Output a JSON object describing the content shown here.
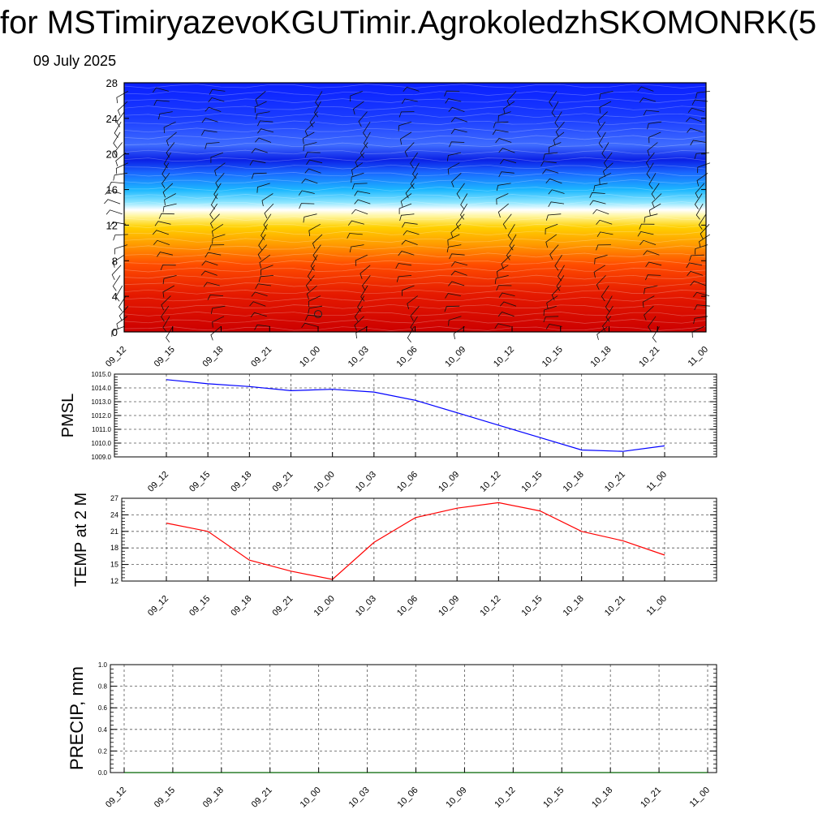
{
  "title": "for MSTimiryazevoKGUTimir.AgrokoledzhSKOMONRK(5",
  "subtitle": "09 July 2025",
  "colors": {
    "pmsl_line": "#0000ff",
    "temp_line": "#ff0000",
    "precip_line": "#006400",
    "grid": "#555555"
  },
  "chart_data": [
    {
      "type": "heatmap",
      "id": "cross-section",
      "x": [
        "09_12",
        "09_15",
        "09_18",
        "09_21",
        "10_00",
        "10_03",
        "10_06",
        "10_09",
        "10_12",
        "10_15",
        "10_18",
        "10_21",
        "11_00"
      ],
      "y_ticks": [
        0,
        4,
        8,
        12,
        16,
        20,
        24,
        28
      ],
      "ylim": [
        0,
        28
      ],
      "color_scale": "red-to-blue",
      "color_transition_y": [
        12.5,
        13.5
      ],
      "barbs": "wind barbs at every column and level"
    },
    {
      "type": "line",
      "id": "pmsl",
      "ylabel": "PMSL",
      "categories": [
        "09_12",
        "09_15",
        "09_18",
        "09_21",
        "10_00",
        "10_03",
        "10_06",
        "10_09",
        "10_12",
        "10_15",
        "10_18",
        "10_21",
        "11_00"
      ],
      "values": [
        1014.6,
        1014.3,
        1014.1,
        1013.8,
        1013.9,
        1013.7,
        1013.1,
        1012.2,
        1011.3,
        1010.4,
        1009.5,
        1009.4,
        1009.8
      ],
      "y_ticks": [
        "1009.0",
        "1010.0",
        "1011.0",
        "1012.0",
        "1013.0",
        "1014.0",
        "1015.0"
      ],
      "ylim": [
        1009,
        1015
      ],
      "grid": true
    },
    {
      "type": "line",
      "id": "temp",
      "ylabel": "TEMP at 2 M",
      "categories": [
        "09_12",
        "09_15",
        "09_18",
        "09_21",
        "10_00",
        "10_03",
        "10_06",
        "10_09",
        "10_12",
        "10_15",
        "10_18",
        "10_21",
        "11_00"
      ],
      "values": [
        22.5,
        21.0,
        15.8,
        13.8,
        12.3,
        19.0,
        23.5,
        25.2,
        26.2,
        24.7,
        21.0,
        19.3,
        16.7
      ],
      "y_ticks": [
        "12",
        "15",
        "18",
        "21",
        "24",
        "27"
      ],
      "ylim": [
        12,
        27
      ],
      "grid": true
    },
    {
      "type": "line",
      "id": "precip",
      "ylabel": "PRECIP, mm",
      "categories": [
        "09_12",
        "09_15",
        "09_18",
        "09_21",
        "10_00",
        "10_03",
        "10_06",
        "10_09",
        "10_12",
        "10_15",
        "10_18",
        "10_21",
        "11_00"
      ],
      "values": [
        0,
        0,
        0,
        0,
        0,
        0,
        0,
        0,
        0,
        0,
        0,
        0,
        0
      ],
      "y_ticks": [
        "0.0",
        "0.2",
        "0.4",
        "0.6",
        "0.8",
        "1.0"
      ],
      "ylim": [
        0,
        1
      ],
      "grid": true
    }
  ]
}
